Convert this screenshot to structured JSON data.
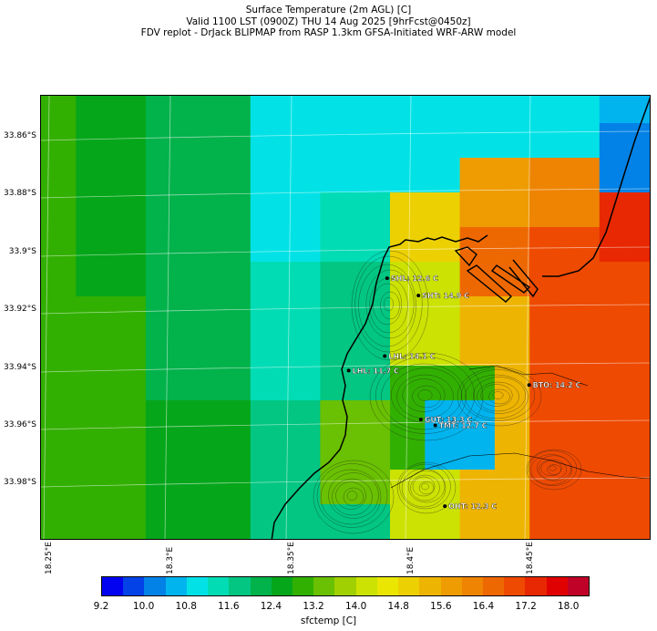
{
  "title": {
    "line1": "Surface Temperature (2m AGL) [C]",
    "line2": "Valid 1100 LST (0900Z) THU 14 Aug 2025 [9hrFcst@0450z]",
    "line3": "FDV replot - DrJack BLIPMAP from RASP 1.3km GFSA-Initiated WRF-ARW model"
  },
  "lat_labels": [
    "33.86°S",
    "33.88°S",
    "33.9°S",
    "33.92°S",
    "33.94°S",
    "33.96°S",
    "33.98°S"
  ],
  "lon_labels": [
    "18.25°E",
    "18.3°E",
    "18.35°E",
    "18.4°E",
    "18.45°E"
  ],
  "stations": [
    {
      "name": "SHL",
      "label": "SHL: 12.6 C",
      "lon": 18.392,
      "lat": -33.909
    },
    {
      "name": "SHT",
      "label": "SHT: 14.9 C",
      "lon": 18.405,
      "lat": -33.915
    },
    {
      "name": "LHL",
      "label": "LHL: 14.1 C",
      "lon": 18.391,
      "lat": -33.936
    },
    {
      "name": "LHL2",
      "label": "LHL: 11.7 C",
      "lon": 18.376,
      "lat": -33.941
    },
    {
      "name": "BTO",
      "label": "BTO: 14.2 C",
      "lon": 18.451,
      "lat": -33.946
    },
    {
      "name": "GUT",
      "label": "GUT: 13.3 C",
      "lon": 18.406,
      "lat": -33.958
    },
    {
      "name": "TMT",
      "label": "TMT: 12.7 C",
      "lon": 18.412,
      "lat": -33.96
    },
    {
      "name": "OHT",
      "label": "OHT: 12.3 C",
      "lon": 18.416,
      "lat": -33.988
    }
  ],
  "colorbar": {
    "colors": [
      "#0202f0",
      "#0242e6",
      "#0282e6",
      "#02b4ee",
      "#02e2e6",
      "#02dcb4",
      "#02c682",
      "#02b24a",
      "#06a61a",
      "#32b002",
      "#6ac002",
      "#a0d002",
      "#cce202",
      "#eae602",
      "#ecd002",
      "#eeb402",
      "#ee9c02",
      "#ee8402",
      "#ee6802",
      "#ee4a02",
      "#e82802",
      "#e00202",
      "#c00228"
    ],
    "tick_labels": [
      "9.2",
      "10.0",
      "10.8",
      "11.6",
      "12.4",
      "13.2",
      "14.0",
      "14.8",
      "15.6",
      "16.4",
      "17.2",
      "18.0"
    ],
    "tick_values": [
      9.2,
      10.0,
      10.8,
      11.6,
      12.4,
      13.2,
      14.0,
      14.8,
      15.6,
      16.4,
      17.2,
      18.0
    ],
    "vmin": 9.2,
    "vmax": 18.4,
    "label": "sfctemp [C]"
  }
}
